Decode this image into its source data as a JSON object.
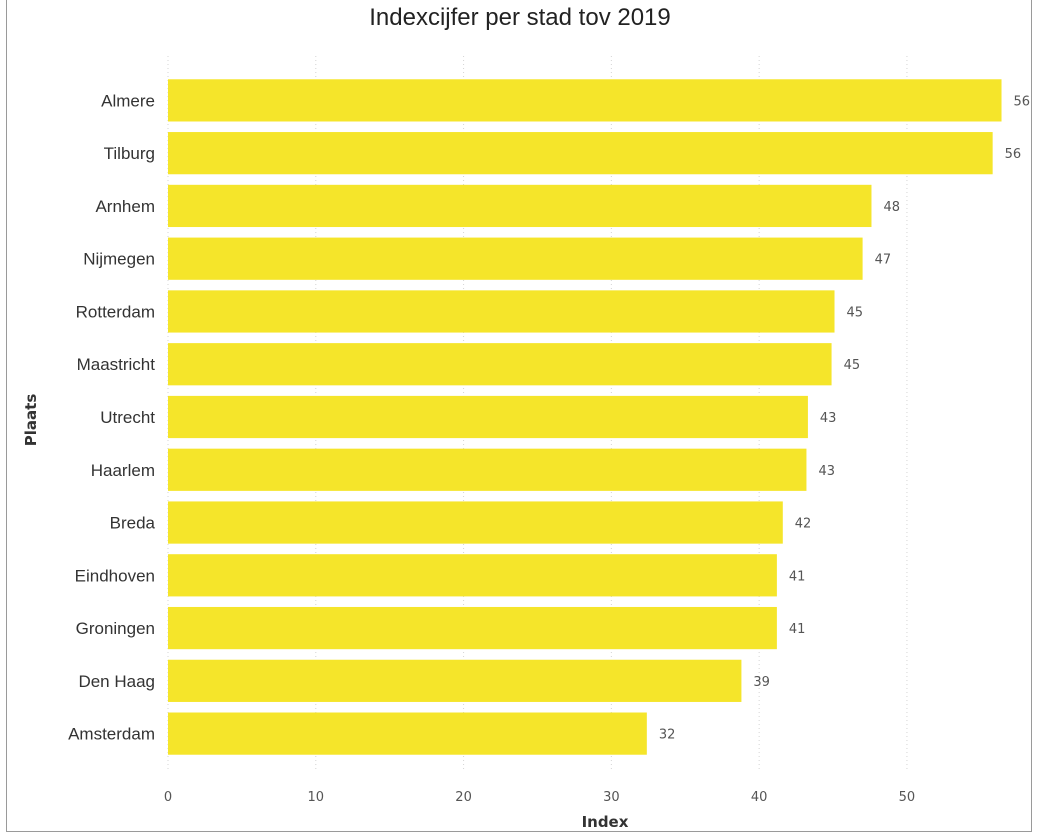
{
  "chart_data": {
    "type": "bar",
    "orientation": "horizontal",
    "title": "Indexcijfer per stad tov 2019",
    "xlabel": "Index",
    "ylabel": "Plaats",
    "xlim": [
      0,
      56.5
    ],
    "xticks": [
      0,
      10,
      20,
      30,
      40,
      50
    ],
    "grid": "vertical dotted",
    "bar_color": "#f5e52a",
    "categories": [
      "Almere",
      "Tilburg",
      "Arnhem",
      "Nijmegen",
      "Rotterdam",
      "Maastricht",
      "Utrecht",
      "Haarlem",
      "Breda",
      "Eindhoven",
      "Groningen",
      "Den Haag",
      "Amsterdam"
    ],
    "values": [
      56.4,
      55.8,
      47.6,
      47.0,
      45.1,
      44.9,
      43.3,
      43.2,
      41.6,
      41.2,
      41.2,
      38.8,
      32.4
    ],
    "data_labels": [
      "56",
      "56",
      "48",
      "47",
      "45",
      "45",
      "43",
      "43",
      "42",
      "41",
      "41",
      "39",
      "32"
    ]
  }
}
